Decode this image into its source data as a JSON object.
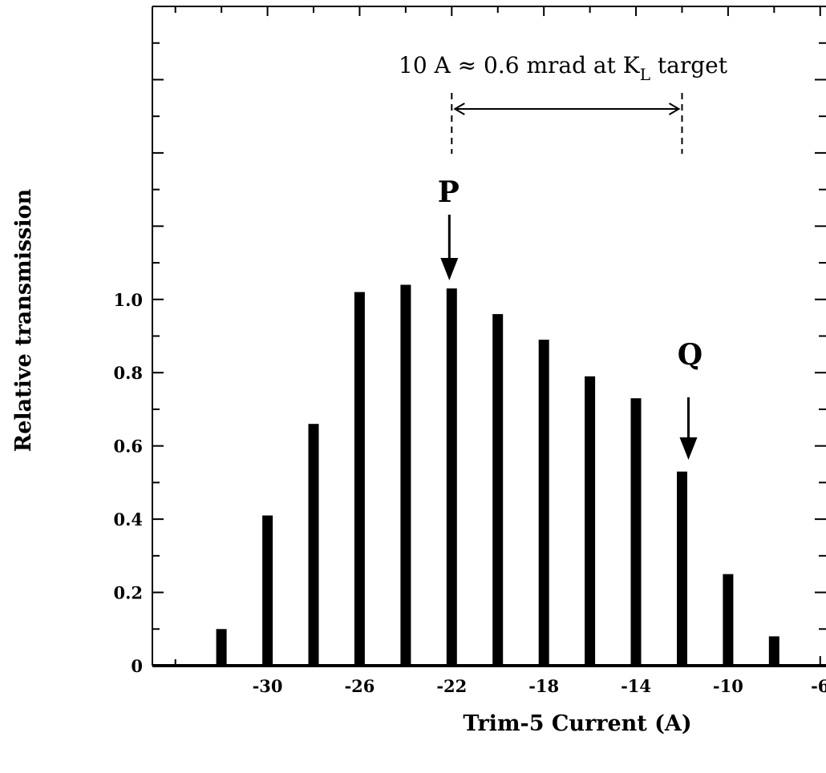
{
  "chart_data": {
    "type": "bar",
    "title": "",
    "xlabel": "Trim-5 Current  (A)",
    "ylabel": "Relative transmission",
    "x": [
      -32,
      -30,
      -28,
      -26,
      -24,
      -22,
      -20,
      -18,
      -16,
      -14,
      -12,
      -10,
      -8
    ],
    "values": [
      0.1,
      0.41,
      0.66,
      1.02,
      1.04,
      1.03,
      0.96,
      0.89,
      0.79,
      0.73,
      0.53,
      0.25,
      0.08
    ],
    "xlim": [
      -35,
      -5.4
    ],
    "ylim": [
      0,
      1.8
    ],
    "x_ticks": [
      -30,
      -26,
      -22,
      -18,
      -14,
      -10,
      -6
    ],
    "x_tick_labels": [
      "-30",
      "-26",
      "-22",
      "-18",
      "-14",
      "-10",
      "-6"
    ],
    "y_ticks": [
      0,
      0.2,
      0.4,
      0.6,
      0.8,
      1.0
    ],
    "y_tick_labels": [
      "0",
      "0.2",
      "0.4",
      "0.6",
      "0.8",
      "1.0"
    ],
    "grid": false,
    "legend": "none",
    "bar_color": "#000000",
    "annotations": {
      "span_text": "10 A ≈ 0.6 mrad at K",
      "span_subscript": "L",
      "span_suffix": " target",
      "span_from_x": -22,
      "span_to_x": -12,
      "label_p": "P",
      "label_p_x": -22,
      "label_q": "Q",
      "label_q_x": -12
    }
  }
}
